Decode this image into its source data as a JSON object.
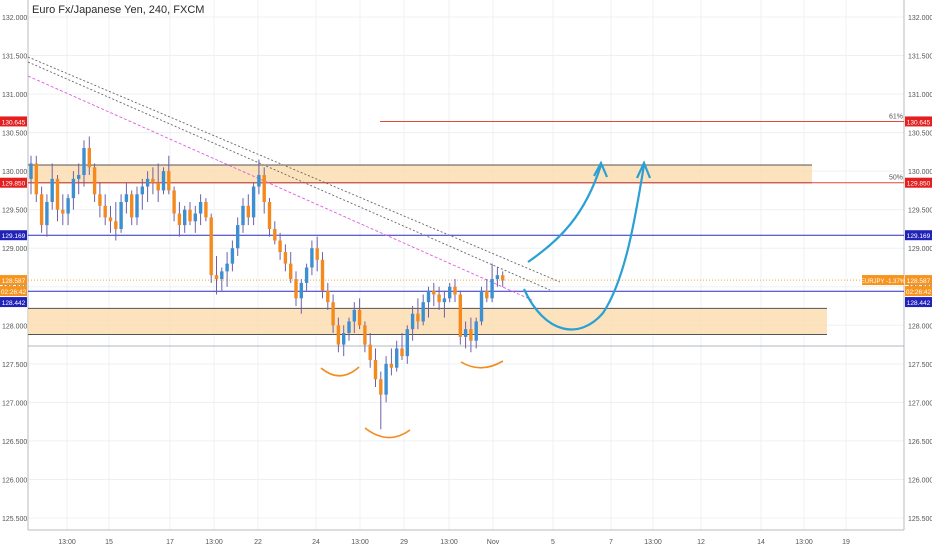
{
  "header": {
    "title": "Euro Fx/Japanese Yen, 240, FXCM"
  },
  "colors": {
    "bull": "#3d8fd1",
    "bear": "#f48a1f",
    "wick": "#6f5fa8",
    "grid": "#edf0f3",
    "zone_fill": "#fbdcae",
    "zone_edge": "#555555",
    "red_line": "#e4473c",
    "blue_line": "#2a2fc4",
    "orange_line": "#f7a43b",
    "projection": "#2aa0d4",
    "pattern": "#f38b1f",
    "trend_pink": "#e05be0",
    "trend_gray": "#666666",
    "label_red": "#e31f1f",
    "label_blue": "#2123b8",
    "label_orange": "#f7941d"
  },
  "chart_data": {
    "type": "candlestick",
    "symbol": "EURJPY",
    "timeframe": "240",
    "ylim": [
      125.3,
      132.1
    ],
    "y_ticks": [
      "125.500",
      "126.000",
      "126.500",
      "127.000",
      "127.500",
      "128.000",
      "128.500",
      "129.000",
      "129.500",
      "130.000",
      "130.500",
      "131.000",
      "131.500",
      "132.000"
    ],
    "x_ticks": [
      "13:00",
      "15",
      "17",
      "13:00",
      "22",
      "24",
      "13:00",
      "29",
      "13:00",
      "Nov",
      "5",
      "7",
      "13:00",
      "12",
      "14",
      "13:00",
      "19"
    ],
    "ohlc": [
      [
        129.9,
        130.2,
        129.7,
        130.1
      ],
      [
        130.1,
        130.2,
        129.6,
        129.7
      ],
      [
        129.7,
        129.8,
        129.2,
        129.3
      ],
      [
        129.3,
        129.7,
        129.15,
        129.6
      ],
      [
        129.6,
        130.1,
        129.5,
        129.9
      ],
      [
        129.9,
        129.95,
        129.35,
        129.5
      ],
      [
        129.5,
        129.7,
        129.3,
        129.45
      ],
      [
        129.45,
        129.7,
        129.3,
        129.65
      ],
      [
        129.65,
        130.0,
        129.5,
        129.9
      ],
      [
        129.9,
        130.1,
        129.7,
        129.95
      ],
      [
        129.95,
        130.4,
        129.8,
        130.3
      ],
      [
        130.3,
        130.45,
        129.95,
        130.05
      ],
      [
        130.05,
        130.1,
        129.6,
        129.7
      ],
      [
        129.7,
        129.85,
        129.4,
        129.55
      ],
      [
        129.55,
        129.7,
        129.3,
        129.4
      ],
      [
        129.4,
        129.55,
        129.2,
        129.35
      ],
      [
        129.35,
        129.6,
        129.1,
        129.25
      ],
      [
        129.25,
        129.7,
        129.2,
        129.6
      ],
      [
        129.6,
        129.85,
        129.45,
        129.7
      ],
      [
        129.7,
        129.75,
        129.3,
        129.4
      ],
      [
        129.4,
        129.8,
        129.3,
        129.7
      ],
      [
        129.7,
        129.9,
        129.5,
        129.8
      ],
      [
        129.8,
        130.0,
        129.6,
        129.9
      ],
      [
        129.9,
        130.05,
        129.7,
        129.85
      ],
      [
        129.85,
        130.1,
        129.6,
        129.75
      ],
      [
        129.75,
        130.05,
        129.7,
        130.0
      ],
      [
        130.0,
        130.2,
        129.7,
        129.75
      ],
      [
        129.75,
        129.8,
        129.35,
        129.45
      ],
      [
        129.45,
        129.6,
        129.15,
        129.3
      ],
      [
        129.3,
        129.55,
        129.2,
        129.5
      ],
      [
        129.5,
        129.6,
        129.3,
        129.35
      ],
      [
        129.35,
        129.55,
        129.2,
        129.45
      ],
      [
        129.45,
        129.7,
        129.3,
        129.6
      ],
      [
        129.6,
        129.65,
        129.35,
        129.4
      ],
      [
        129.4,
        129.45,
        128.55,
        128.65
      ],
      [
        128.65,
        128.9,
        128.4,
        128.6
      ],
      [
        128.6,
        128.75,
        128.45,
        128.7
      ],
      [
        128.7,
        128.95,
        128.5,
        128.8
      ],
      [
        128.8,
        129.1,
        128.7,
        129.0
      ],
      [
        129.0,
        129.4,
        128.9,
        129.3
      ],
      [
        129.3,
        129.65,
        129.2,
        129.55
      ],
      [
        129.55,
        129.7,
        129.3,
        129.4
      ],
      [
        129.4,
        129.85,
        129.3,
        129.8
      ],
      [
        129.8,
        130.15,
        129.7,
        129.95
      ],
      [
        129.95,
        130.05,
        129.45,
        129.6
      ],
      [
        129.6,
        129.65,
        129.15,
        129.25
      ],
      [
        129.25,
        129.35,
        129.05,
        129.1
      ],
      [
        129.1,
        129.2,
        128.85,
        128.95
      ],
      [
        128.95,
        129.05,
        128.7,
        128.8
      ],
      [
        128.8,
        128.95,
        128.55,
        128.6
      ],
      [
        128.6,
        128.7,
        128.25,
        128.35
      ],
      [
        128.35,
        128.6,
        128.15,
        128.55
      ],
      [
        128.55,
        128.8,
        128.45,
        128.75
      ],
      [
        128.75,
        129.1,
        128.65,
        129.0
      ],
      [
        129.0,
        129.15,
        128.7,
        128.85
      ],
      [
        128.85,
        128.95,
        128.35,
        128.45
      ],
      [
        128.45,
        128.55,
        128.2,
        128.3
      ],
      [
        128.3,
        128.4,
        127.9,
        128.0
      ],
      [
        128.0,
        128.1,
        127.65,
        127.75
      ],
      [
        127.75,
        128.0,
        127.6,
        127.9
      ],
      [
        127.9,
        128.1,
        127.8,
        128.05
      ],
      [
        128.05,
        128.3,
        127.9,
        128.2
      ],
      [
        128.2,
        128.35,
        127.95,
        128.0
      ],
      [
        128.0,
        128.05,
        127.65,
        127.75
      ],
      [
        127.75,
        127.9,
        127.45,
        127.55
      ],
      [
        127.55,
        127.7,
        127.2,
        127.3
      ],
      [
        127.3,
        127.4,
        126.65,
        127.1
      ],
      [
        127.1,
        127.6,
        127.0,
        127.5
      ],
      [
        127.5,
        127.7,
        127.35,
        127.45
      ],
      [
        127.45,
        127.8,
        127.4,
        127.7
      ],
      [
        127.7,
        127.9,
        127.55,
        127.6
      ],
      [
        127.6,
        128.0,
        127.5,
        127.95
      ],
      [
        127.95,
        128.25,
        127.8,
        128.15
      ],
      [
        128.15,
        128.35,
        127.95,
        128.05
      ],
      [
        128.05,
        128.4,
        128.0,
        128.3
      ],
      [
        128.3,
        128.5,
        128.1,
        128.45
      ],
      [
        128.45,
        128.55,
        128.25,
        128.4
      ],
      [
        128.4,
        128.5,
        128.2,
        128.3
      ],
      [
        128.3,
        128.45,
        128.1,
        128.35
      ],
      [
        128.35,
        128.55,
        128.3,
        128.5
      ],
      [
        128.5,
        128.6,
        128.3,
        128.4
      ],
      [
        128.4,
        128.45,
        127.75,
        127.85
      ],
      [
        127.85,
        128.05,
        127.7,
        127.95
      ],
      [
        127.95,
        128.1,
        127.65,
        127.8
      ],
      [
        127.8,
        128.1,
        127.7,
        128.05
      ],
      [
        128.05,
        128.5,
        128.0,
        128.45
      ],
      [
        128.45,
        128.6,
        128.3,
        128.35
      ],
      [
        128.35,
        128.8,
        128.3,
        128.6
      ],
      [
        128.6,
        128.75,
        128.5,
        128.65
      ],
      [
        128.65,
        128.7,
        128.5,
        128.58
      ]
    ],
    "horizontal_levels": [
      {
        "id": "fib61",
        "price": "130.645",
        "fib_label": "61%"
      },
      {
        "id": "fib50",
        "price": "129.850",
        "fib_label": "50%"
      },
      {
        "id": "res",
        "price": "129.169"
      },
      {
        "id": "cur",
        "price": "128.587",
        "symbol_label": "EURJPY -1.37%",
        "countdown": "02:26:42"
      },
      {
        "id": "sup",
        "price": "128.442"
      }
    ],
    "zones": [
      {
        "id": "upper-zone",
        "from": 129.85,
        "to": 130.08
      },
      {
        "id": "lower-zone",
        "from": 127.88,
        "to": 128.22
      }
    ],
    "price_axis_tags": {
      "left": [
        "130.645",
        "129.850",
        "129.169",
        "128.587",
        "02:26:42",
        "128.442"
      ],
      "right": [
        "130.645",
        "129.850",
        "129.169",
        "128.587",
        "02:26:42",
        "128.442"
      ]
    }
  }
}
